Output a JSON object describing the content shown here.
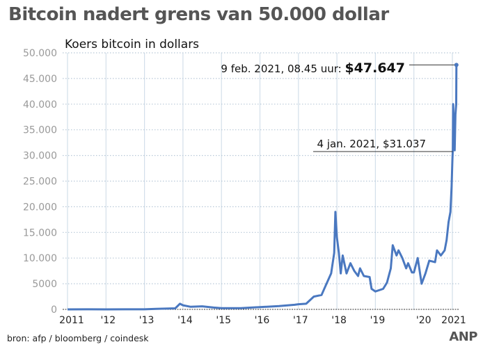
{
  "header": {
    "title": "Bitcoin nadert grens van 50.000 dollar",
    "source": "bron: afp / bloomberg / coindesk",
    "logo": "ANP"
  },
  "chart_data": {
    "type": "line",
    "title": "Bitcoin nadert grens van 50.000 dollar",
    "subtitle": "Koers bitcoin in dollars",
    "xlabel": "",
    "ylabel": "",
    "ylim": [
      0,
      50000
    ],
    "xlim": [
      2010.9,
      2021.25
    ],
    "grid": true,
    "line_color": "#4a78c0",
    "yticks": [
      {
        "v": 0,
        "label": "0"
      },
      {
        "v": 5000,
        "label": "5000"
      },
      {
        "v": 10000,
        "label": "10.000"
      },
      {
        "v": 15000,
        "label": "15.000"
      },
      {
        "v": 20000,
        "label": "20.000"
      },
      {
        "v": 25000,
        "label": "25.000"
      },
      {
        "v": 30000,
        "label": "30.000"
      },
      {
        "v": 35000,
        "label": "35.000"
      },
      {
        "v": 40000,
        "label": "40.000"
      },
      {
        "v": 45000,
        "label": "45.000"
      },
      {
        "v": 50000,
        "label": "50.000"
      }
    ],
    "xticks": [
      {
        "v": 2011,
        "label": "2011"
      },
      {
        "v": 2012,
        "label": "'12"
      },
      {
        "v": 2013,
        "label": "'13"
      },
      {
        "v": 2014,
        "label": "'14"
      },
      {
        "v": 2015,
        "label": "'15"
      },
      {
        "v": 2016,
        "label": "'16"
      },
      {
        "v": 2017,
        "label": "'17"
      },
      {
        "v": 2018,
        "label": "'18"
      },
      {
        "v": 2019,
        "label": "'19"
      },
      {
        "v": 2020,
        "label": "'20"
      },
      {
        "v": 2021,
        "label": "2021"
      }
    ],
    "series": [
      {
        "name": "Koers bitcoin",
        "points": [
          [
            2011.0,
            0.3
          ],
          [
            2011.5,
            15
          ],
          [
            2012.0,
            5
          ],
          [
            2012.5,
            7
          ],
          [
            2013.0,
            13
          ],
          [
            2013.3,
            100
          ],
          [
            2013.8,
            200
          ],
          [
            2013.92,
            1100
          ],
          [
            2014.0,
            800
          ],
          [
            2014.2,
            500
          ],
          [
            2014.5,
            600
          ],
          [
            2014.8,
            350
          ],
          [
            2015.0,
            250
          ],
          [
            2015.5,
            250
          ],
          [
            2015.9,
            400
          ],
          [
            2016.0,
            430
          ],
          [
            2016.5,
            650
          ],
          [
            2016.9,
            900
          ],
          [
            2017.0,
            1000
          ],
          [
            2017.2,
            1100
          ],
          [
            2017.4,
            2500
          ],
          [
            2017.6,
            2800
          ],
          [
            2017.7,
            4500
          ],
          [
            2017.85,
            7000
          ],
          [
            2017.93,
            11000
          ],
          [
            2017.96,
            19000
          ],
          [
            2018.0,
            14000
          ],
          [
            2018.05,
            11000
          ],
          [
            2018.1,
            7000
          ],
          [
            2018.15,
            10500
          ],
          [
            2018.25,
            7000
          ],
          [
            2018.35,
            9000
          ],
          [
            2018.45,
            7500
          ],
          [
            2018.55,
            6500
          ],
          [
            2018.6,
            8000
          ],
          [
            2018.7,
            6500
          ],
          [
            2018.85,
            6300
          ],
          [
            2018.9,
            4000
          ],
          [
            2019.0,
            3500
          ],
          [
            2019.2,
            4000
          ],
          [
            2019.3,
            5200
          ],
          [
            2019.4,
            8000
          ],
          [
            2019.45,
            12500
          ],
          [
            2019.55,
            10500
          ],
          [
            2019.6,
            11500
          ],
          [
            2019.7,
            10000
          ],
          [
            2019.8,
            8000
          ],
          [
            2019.85,
            9000
          ],
          [
            2019.95,
            7200
          ],
          [
            2020.0,
            7200
          ],
          [
            2020.1,
            10000
          ],
          [
            2020.2,
            5000
          ],
          [
            2020.3,
            7000
          ],
          [
            2020.4,
            9500
          ],
          [
            2020.55,
            9200
          ],
          [
            2020.6,
            11500
          ],
          [
            2020.7,
            10500
          ],
          [
            2020.8,
            11500
          ],
          [
            2020.85,
            13500
          ],
          [
            2020.9,
            17000
          ],
          [
            2020.95,
            19000
          ],
          [
            2020.98,
            24000
          ],
          [
            2021.0,
            29000
          ],
          [
            2021.01,
            31037
          ],
          [
            2021.02,
            40000
          ],
          [
            2021.04,
            35000
          ],
          [
            2021.06,
            31000
          ],
          [
            2021.08,
            38000
          ],
          [
            2021.1,
            40000
          ],
          [
            2021.105,
            47647
          ]
        ]
      }
    ],
    "annotations": [
      {
        "x": 2021.105,
        "y": 47647,
        "label": "9 feb. 2021, 08.45 uur: ",
        "value": "$47.647"
      },
      {
        "x": 2021.01,
        "y": 31037,
        "label": "4 jan. 2021, $31.037",
        "value": ""
      }
    ]
  }
}
